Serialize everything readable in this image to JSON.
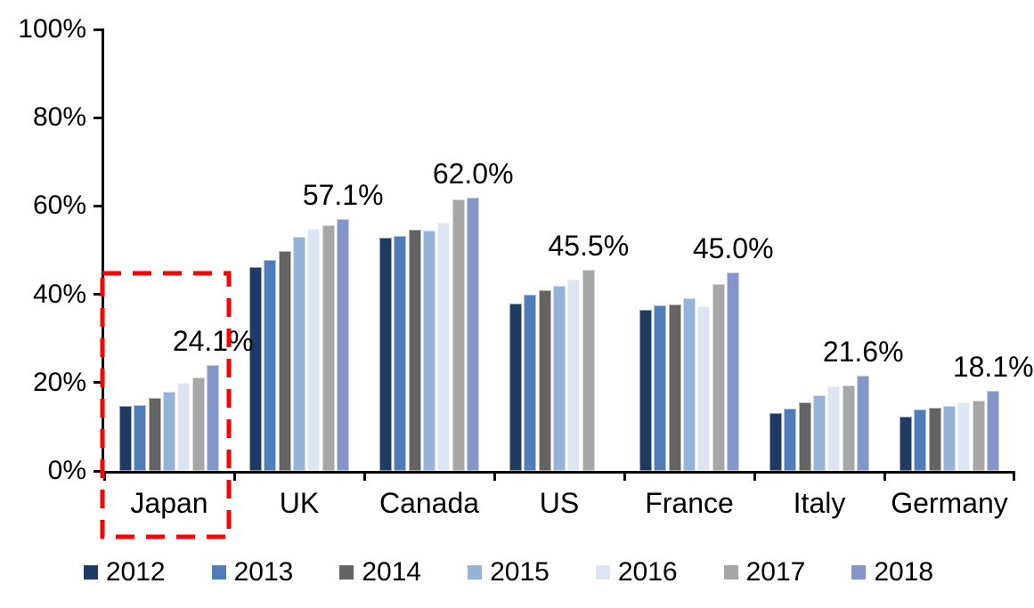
{
  "chart_data": {
    "type": "bar",
    "title": "",
    "xlabel": "",
    "ylabel": "",
    "unit": "%",
    "ylim": [
      0,
      100
    ],
    "grid": false,
    "legend_position": "bottom",
    "yticks": [
      {
        "label": "0%",
        "value": 0
      },
      {
        "label": "20%",
        "value": 20
      },
      {
        "label": "40%",
        "value": 40
      },
      {
        "label": "60%",
        "value": 60
      },
      {
        "label": "80%",
        "value": 80
      },
      {
        "label": "100%",
        "value": 100
      }
    ],
    "series_years": [
      "2012",
      "2013",
      "2014",
      "2015",
      "2016",
      "2017",
      "2018"
    ],
    "categories": [
      "Japan",
      "UK",
      "Canada",
      "US",
      "France",
      "Italy",
      "Germany"
    ],
    "groups": [
      {
        "category": "Japan",
        "years": [
          "2012",
          "2013",
          "2014",
          "2015",
          "2016",
          "2017",
          "2018"
        ],
        "values": [
          14.7,
          14.9,
          16.5,
          17.9,
          19.9,
          21.1,
          24.1
        ],
        "data_label": "24.1%",
        "highlighted": true
      },
      {
        "category": "UK",
        "years": [
          "2012",
          "2013",
          "2014",
          "2015",
          "2016",
          "2017",
          "2018"
        ],
        "values": [
          46.2,
          47.8,
          49.9,
          53.1,
          54.8,
          55.7,
          57.1
        ],
        "data_label": "57.1%",
        "highlighted": false
      },
      {
        "category": "Canada",
        "years": [
          "2012",
          "2013",
          "2014",
          "2015",
          "2016",
          "2017",
          "2018"
        ],
        "values": [
          52.8,
          53.2,
          54.7,
          54.5,
          56.2,
          61.5,
          62.0
        ],
        "data_label": "62.0%",
        "highlighted": false
      },
      {
        "category": "US",
        "years": [
          "2012",
          "2013",
          "2014",
          "2015",
          "2016",
          "2017"
        ],
        "values": [
          38.0,
          40.0,
          41.0,
          42.0,
          43.4,
          45.5
        ],
        "data_label": "45.5%",
        "highlighted": false
      },
      {
        "category": "France",
        "years": [
          "2012",
          "2013",
          "2014",
          "2015",
          "2016",
          "2017",
          "2018"
        ],
        "values": [
          36.5,
          37.5,
          37.7,
          39.2,
          37.3,
          42.3,
          45.0
        ],
        "data_label": "45.0%",
        "highlighted": false
      },
      {
        "category": "Italy",
        "years": [
          "2012",
          "2013",
          "2014",
          "2015",
          "2016",
          "2017",
          "2018"
        ],
        "values": [
          13.2,
          14.1,
          15.5,
          17.1,
          19.1,
          19.3,
          21.6
        ],
        "data_label": "21.6%",
        "highlighted": false
      },
      {
        "category": "Germany",
        "years": [
          "2012",
          "2013",
          "2014",
          "2015",
          "2016",
          "2017",
          "2018"
        ],
        "values": [
          12.4,
          13.9,
          14.4,
          14.8,
          15.5,
          16.0,
          18.1
        ],
        "data_label": "18.1%",
        "highlighted": false
      }
    ],
    "legend": [
      {
        "label": "2012",
        "color": "#1f3b64"
      },
      {
        "label": "2013",
        "color": "#4e7dba"
      },
      {
        "label": "2014",
        "color": "#636363"
      },
      {
        "label": "2015",
        "color": "#95b3d7"
      },
      {
        "label": "2016",
        "color": "#dce6f2"
      },
      {
        "label": "2017",
        "color": "#a6a6a6"
      },
      {
        "label": "2018",
        "color": "#8496c9"
      }
    ],
    "highlight": {
      "category": "Japan",
      "color": "#ff0000",
      "style": "dashed-rectangle"
    },
    "colors": {
      "axis": "#000000",
      "background": "#ffffff",
      "text": "#000000"
    }
  }
}
